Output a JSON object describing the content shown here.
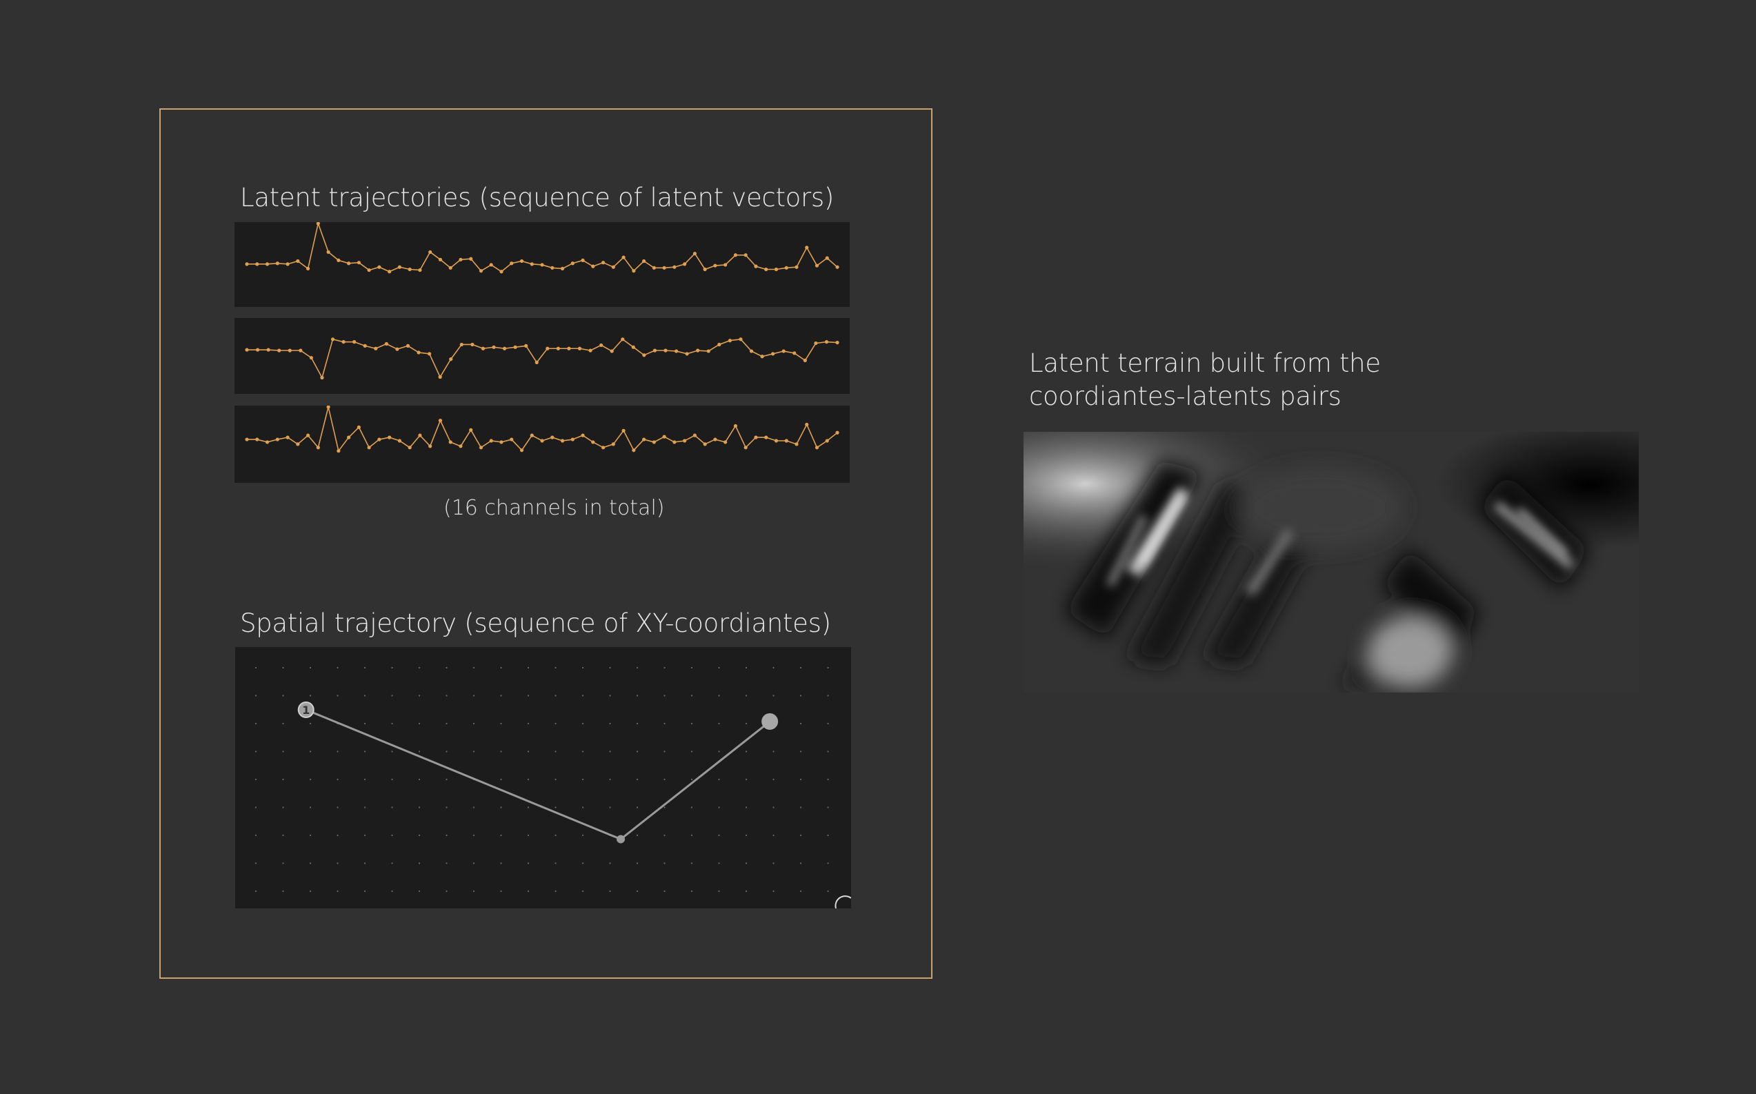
{
  "latent_section": {
    "title": "Latent trajectories (sequence of latent vectors)",
    "footnote": "(16 channels in total)"
  },
  "spatial_section": {
    "title": "Spatial trajectory (sequence of XY-coordiantes)",
    "start_badge": "1"
  },
  "terrain_section": {
    "title_line1": "Latent terrain built from the",
    "title_line2": "coordiantes-latents pairs"
  },
  "colors": {
    "background": "#313131",
    "panel": "#1c1c1c",
    "accent_orange": "#e0a050",
    "frame": "#c9a46e",
    "path": "#9a9a9a"
  },
  "chart_data": [
    {
      "type": "line",
      "channel": 1,
      "values": [
        0.46,
        0.46,
        0.46,
        0.47,
        0.46,
        0.5,
        0.4,
        1.0,
        0.62,
        0.51,
        0.47,
        0.48,
        0.38,
        0.42,
        0.36,
        0.42,
        0.39,
        0.38,
        0.62,
        0.52,
        0.41,
        0.52,
        0.53,
        0.37,
        0.45,
        0.36,
        0.47,
        0.5,
        0.46,
        0.45,
        0.41,
        0.4,
        0.47,
        0.51,
        0.43,
        0.48,
        0.42,
        0.55,
        0.37,
        0.5,
        0.41,
        0.41,
        0.42,
        0.46,
        0.6,
        0.39,
        0.44,
        0.45,
        0.58,
        0.58,
        0.43,
        0.39,
        0.39,
        0.41,
        0.42,
        0.68,
        0.44,
        0.54,
        0.42
      ]
    },
    {
      "type": "line",
      "channel": 2,
      "values": [
        0.54,
        0.54,
        0.54,
        0.53,
        0.53,
        0.53,
        0.42,
        0.12,
        0.7,
        0.66,
        0.66,
        0.6,
        0.56,
        0.63,
        0.55,
        0.6,
        0.5,
        0.48,
        0.13,
        0.4,
        0.62,
        0.62,
        0.56,
        0.58,
        0.56,
        0.58,
        0.6,
        0.35,
        0.56,
        0.56,
        0.56,
        0.56,
        0.53,
        0.61,
        0.52,
        0.7,
        0.58,
        0.46,
        0.53,
        0.53,
        0.52,
        0.48,
        0.53,
        0.52,
        0.62,
        0.68,
        0.7,
        0.52,
        0.44,
        0.48,
        0.52,
        0.49,
        0.38,
        0.64,
        0.66,
        0.65
      ]
    },
    {
      "type": "line",
      "channel": 3,
      "values": [
        0.52,
        0.52,
        0.48,
        0.52,
        0.55,
        0.45,
        0.58,
        0.4,
        1.0,
        0.35,
        0.55,
        0.7,
        0.4,
        0.52,
        0.55,
        0.5,
        0.4,
        0.58,
        0.42,
        0.8,
        0.48,
        0.42,
        0.66,
        0.4,
        0.5,
        0.48,
        0.52,
        0.36,
        0.58,
        0.5,
        0.55,
        0.5,
        0.52,
        0.58,
        0.48,
        0.4,
        0.45,
        0.65,
        0.36,
        0.52,
        0.48,
        0.56,
        0.48,
        0.5,
        0.58,
        0.45,
        0.52,
        0.48,
        0.72,
        0.4,
        0.55,
        0.55,
        0.5,
        0.5,
        0.45,
        0.74,
        0.4,
        0.5,
        0.62
      ]
    },
    {
      "type": "scatter",
      "name": "spatial-trajectory",
      "grid": true,
      "points": [
        {
          "x": 0.115,
          "y": 0.24,
          "label": "1"
        },
        {
          "x": 0.626,
          "y": 0.735
        },
        {
          "x": 0.868,
          "y": 0.285
        }
      ]
    }
  ]
}
